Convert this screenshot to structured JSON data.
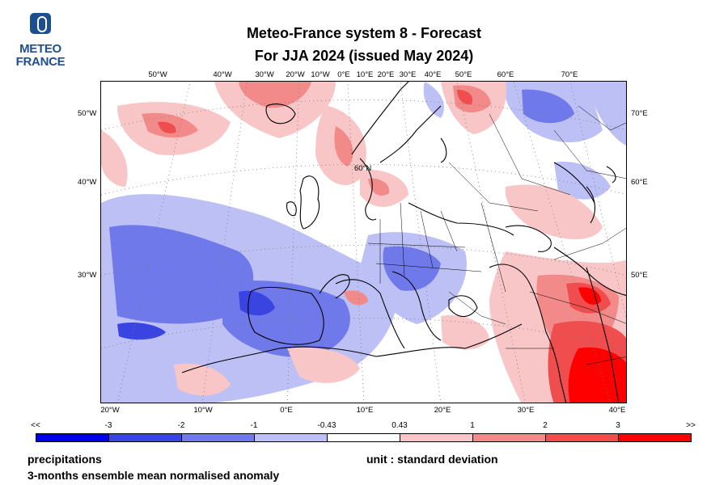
{
  "logo": {
    "line1": "METEO",
    "line2": "FRANCE"
  },
  "title": {
    "line1": "Meteo-France system 8  -  Forecast",
    "line2": "For JJA 2024      (issued May 2024)"
  },
  "map": {
    "top_labels": [
      "50°W",
      "40°W",
      "30°W",
      "20°W",
      "10°W",
      "0°E",
      "10°E",
      "20°E",
      "30°E",
      "40°E",
      "50°E",
      "60°E",
      "70°E"
    ],
    "bottom_labels": [
      "20°W",
      "10°W",
      "0°E",
      "10°E",
      "20°E",
      "30°E",
      "40°E"
    ],
    "left_labels": [
      "50°W",
      "40°W",
      "30°W"
    ],
    "right_labels": [
      "70°E",
      "60°E",
      "50°E"
    ],
    "inner_label": "60°N"
  },
  "legend": {
    "tick_labels": [
      "<<",
      "-3",
      "-2",
      "-1",
      "-0.43",
      "0.43",
      "1",
      "2",
      "3",
      ">>"
    ],
    "colors": [
      "#0000ee",
      "#3a44e0",
      "#6f79ea",
      "#bcc0f4",
      "#ffffff",
      "#f8c6c6",
      "#f28a8a",
      "#f04e4e",
      "#ff0000"
    ]
  },
  "footer": {
    "variable": "precipitations",
    "description": "3-months ensemble mean normalised anomaly",
    "unit": "unit : standard deviation"
  }
}
